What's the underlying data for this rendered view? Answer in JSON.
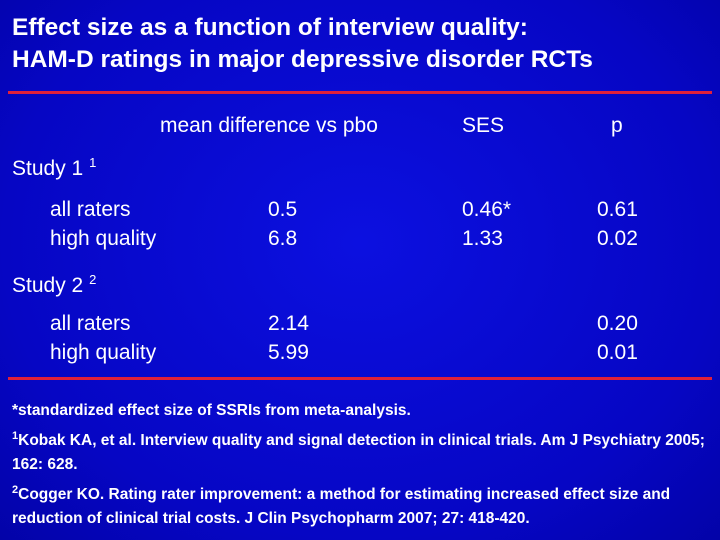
{
  "title": [
    "Effect size as a function of interview quality:",
    "HAM-D ratings in major depressive disorder RCTs"
  ],
  "table": {
    "header": [
      "mean difference vs pbo",
      "SES",
      "p"
    ],
    "groups": [
      {
        "label": "Study 1",
        "ref": "1",
        "rows": [
          {
            "label": "all raters",
            "mean_difference": "0.5",
            "ses": "0.46*",
            "p": "0.61"
          },
          {
            "label": "high quality",
            "mean_difference": "6.8",
            "ses": "1.33",
            "p": "0.02"
          }
        ]
      },
      {
        "label": "Study 2",
        "ref": "2",
        "rows": [
          {
            "label": "all raters",
            "mean_difference": "2.14",
            "p": "0.20"
          },
          {
            "label": "high quality",
            "mean_difference": "5.99",
            "p": "0.01"
          }
        ]
      }
    ]
  },
  "footnotes": [
    {
      "text": "*standardized effect size of SSRIs from meta-analysis."
    },
    {
      "ref": "1",
      "text": "Kobak KA, et al. Interview quality and signal detection in clinical trials. Am J Psychiatry 2005; 162: 628."
    },
    {
      "ref": "2",
      "text": "Cogger KO. Rating rater improvement: a method for estimating increased effect size and reduction of clinical trial costs. J Clin Psychopharm 2007; 27: 418-420."
    }
  ]
}
